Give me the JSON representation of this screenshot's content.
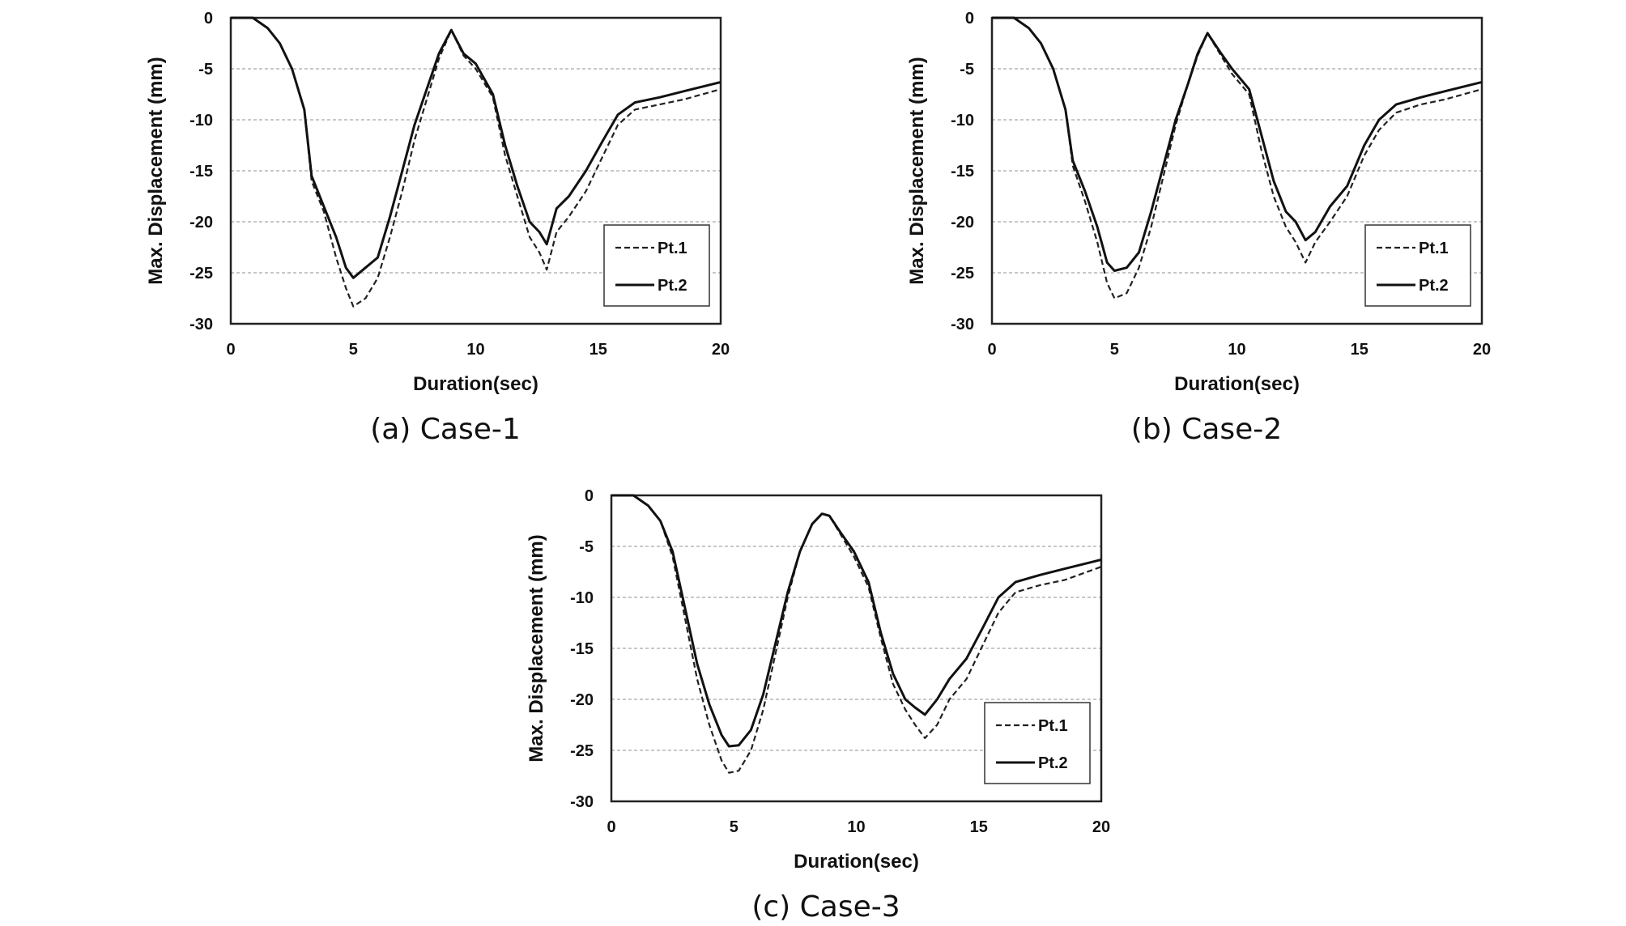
{
  "chart_data": [
    {
      "type": "line",
      "caption": "(a) Case-1",
      "xlabel": "Duration(sec)",
      "ylabel": "Max. Displacement (mm)",
      "xlim": [
        0,
        20
      ],
      "ylim": [
        -30,
        0
      ],
      "xticks": [
        0,
        5,
        10,
        15,
        20
      ],
      "yticks": [
        0,
        -5,
        -10,
        -15,
        -20,
        -25,
        -30
      ],
      "grid": "horizontal dashed",
      "legend_position": "bottom-right",
      "series": [
        {
          "name": "Pt.1",
          "style": "dashed",
          "color": "#222222",
          "x": [
            0,
            0.9,
            1.5,
            2.0,
            2.5,
            3.0,
            3.3,
            3.8,
            4.3,
            4.7,
            5.0,
            5.5,
            6.0,
            6.5,
            7.0,
            7.5,
            8.0,
            8.5,
            9.0,
            9.5,
            10.0,
            10.7,
            11.2,
            11.7,
            12.2,
            12.6,
            12.9,
            13.3,
            13.8,
            14.5,
            15.2,
            15.8,
            16.5,
            17.5,
            18.5,
            20
          ],
          "y": [
            0,
            0,
            -1,
            -2.5,
            -5,
            -9,
            -16,
            -19,
            -23.5,
            -26.5,
            -28.3,
            -27.5,
            -25.5,
            -21.5,
            -17,
            -12,
            -8,
            -4,
            -1.2,
            -3.7,
            -5,
            -7.8,
            -13.5,
            -17.5,
            -21.5,
            -23,
            -24.7,
            -21,
            -19.5,
            -17,
            -13.5,
            -10.5,
            -9,
            -8.5,
            -8,
            -7
          ]
        },
        {
          "name": "Pt.2",
          "style": "solid",
          "color": "#111111",
          "x": [
            0,
            0.9,
            1.5,
            2.0,
            2.5,
            3.0,
            3.3,
            3.8,
            4.3,
            4.7,
            5.0,
            5.5,
            6.0,
            6.5,
            7.0,
            7.5,
            8.0,
            8.5,
            9.0,
            9.5,
            10.0,
            10.7,
            11.2,
            11.7,
            12.2,
            12.6,
            12.9,
            13.3,
            13.8,
            14.5,
            15.2,
            15.8,
            16.5,
            17.5,
            18.5,
            20
          ],
          "y": [
            0,
            0,
            -1,
            -2.5,
            -5,
            -9,
            -15.5,
            -18.5,
            -21.5,
            -24.5,
            -25.5,
            -24.5,
            -23.5,
            -19.5,
            -15,
            -10.5,
            -7,
            -3.5,
            -1.2,
            -3.5,
            -4.5,
            -7.5,
            -12.5,
            -16.5,
            -20,
            -21,
            -22.2,
            -18.7,
            -17.5,
            -15,
            -12,
            -9.5,
            -8.3,
            -7.8,
            -7.2,
            -6.3
          ]
        }
      ]
    },
    {
      "type": "line",
      "caption": "(b) Case-2",
      "xlabel": "Duration(sec)",
      "ylabel": "Max. Displacement (mm)",
      "xlim": [
        0,
        20
      ],
      "ylim": [
        -30,
        0
      ],
      "xticks": [
        0,
        5,
        10,
        15,
        20
      ],
      "yticks": [
        0,
        -5,
        -10,
        -15,
        -20,
        -25,
        -30
      ],
      "grid": "horizontal dashed",
      "legend_position": "bottom-right",
      "series": [
        {
          "name": "Pt.1",
          "style": "dashed",
          "color": "#222222",
          "x": [
            0,
            0.9,
            1.5,
            2.0,
            2.5,
            3.0,
            3.3,
            3.8,
            4.3,
            4.7,
            5.0,
            5.5,
            6.0,
            6.5,
            7.0,
            7.5,
            8.0,
            8.4,
            8.8,
            9.3,
            9.8,
            10.5,
            11.0,
            11.5,
            12.0,
            12.4,
            12.8,
            13.2,
            13.8,
            14.5,
            15.2,
            15.8,
            16.5,
            17.5,
            18.5,
            20
          ],
          "y": [
            0,
            0,
            -1,
            -2.5,
            -5,
            -9,
            -14.5,
            -18,
            -22,
            -26,
            -27.5,
            -27,
            -24.5,
            -20.5,
            -15.5,
            -10.5,
            -6.5,
            -3.7,
            -1.5,
            -3.5,
            -5.5,
            -7.5,
            -13,
            -17.5,
            -20.5,
            -22,
            -24,
            -22,
            -20,
            -17.5,
            -13.5,
            -11,
            -9.3,
            -8.5,
            -8,
            -7
          ]
        },
        {
          "name": "Pt.2",
          "style": "solid",
          "color": "#111111",
          "x": [
            0,
            0.9,
            1.5,
            2.0,
            2.5,
            3.0,
            3.3,
            3.8,
            4.3,
            4.7,
            5.0,
            5.5,
            6.0,
            6.5,
            7.0,
            7.5,
            8.0,
            8.4,
            8.8,
            9.3,
            9.8,
            10.5,
            11.0,
            11.5,
            12.0,
            12.4,
            12.8,
            13.2,
            13.8,
            14.5,
            15.2,
            15.8,
            16.5,
            17.5,
            18.5,
            20
          ],
          "y": [
            0,
            0,
            -1,
            -2.5,
            -5,
            -9,
            -14,
            -17,
            -20.5,
            -24,
            -24.8,
            -24.5,
            -23,
            -19,
            -14.5,
            -10,
            -6.5,
            -3.5,
            -1.5,
            -3.3,
            -5,
            -7,
            -11.5,
            -16,
            -19,
            -20,
            -21.8,
            -21,
            -18.5,
            -16.5,
            -12.5,
            -10,
            -8.5,
            -7.8,
            -7.2,
            -6.3
          ]
        }
      ]
    },
    {
      "type": "line",
      "caption": "(c) Case-3",
      "xlabel": "Duration(sec)",
      "ylabel": "Max. Displacement (mm)",
      "xlim": [
        0,
        20
      ],
      "ylim": [
        -30,
        0
      ],
      "xticks": [
        0,
        5,
        10,
        15,
        20
      ],
      "yticks": [
        0,
        -5,
        -10,
        -15,
        -20,
        -25,
        -30
      ],
      "grid": "horizontal dashed",
      "legend_position": "bottom-right",
      "series": [
        {
          "name": "Pt.1",
          "style": "dashed",
          "color": "#222222",
          "x": [
            0,
            0.9,
            1.5,
            2.0,
            2.5,
            3.0,
            3.5,
            4.0,
            4.5,
            4.8,
            5.2,
            5.7,
            6.2,
            6.7,
            7.2,
            7.7,
            8.2,
            8.6,
            8.9,
            9.4,
            9.9,
            10.5,
            11.0,
            11.5,
            12.0,
            12.4,
            12.8,
            13.3,
            13.8,
            14.5,
            15.2,
            15.8,
            16.5,
            17.5,
            18.5,
            20
          ],
          "y": [
            0,
            0,
            -1,
            -2.5,
            -6,
            -12,
            -18,
            -22.5,
            -26,
            -27.2,
            -27,
            -25,
            -21,
            -15.5,
            -10,
            -5.5,
            -2.8,
            -1.8,
            -2,
            -4,
            -6,
            -9,
            -14,
            -18.5,
            -21,
            -22.5,
            -23.8,
            -22.5,
            -20,
            -18,
            -14.5,
            -11.5,
            -9.5,
            -8.8,
            -8.3,
            -7
          ]
        },
        {
          "name": "Pt.2",
          "style": "solid",
          "color": "#111111",
          "x": [
            0,
            0.9,
            1.5,
            2.0,
            2.5,
            3.0,
            3.5,
            4.0,
            4.5,
            4.8,
            5.2,
            5.7,
            6.2,
            6.7,
            7.2,
            7.7,
            8.2,
            8.6,
            8.9,
            9.4,
            9.9,
            10.5,
            11.0,
            11.5,
            12.0,
            12.4,
            12.8,
            13.3,
            13.8,
            14.5,
            15.2,
            15.8,
            16.5,
            17.5,
            18.5,
            20
          ],
          "y": [
            0,
            0,
            -1,
            -2.5,
            -5.5,
            -11,
            -16.5,
            -20.5,
            -23.5,
            -24.6,
            -24.5,
            -23,
            -19.5,
            -14.5,
            -9.5,
            -5.5,
            -2.8,
            -1.8,
            -2,
            -3.8,
            -5.5,
            -8.5,
            -13.5,
            -17.5,
            -20,
            -20.8,
            -21.5,
            -20,
            -18,
            -16,
            -12.8,
            -10,
            -8.5,
            -7.8,
            -7.2,
            -6.3
          ]
        }
      ]
    }
  ]
}
